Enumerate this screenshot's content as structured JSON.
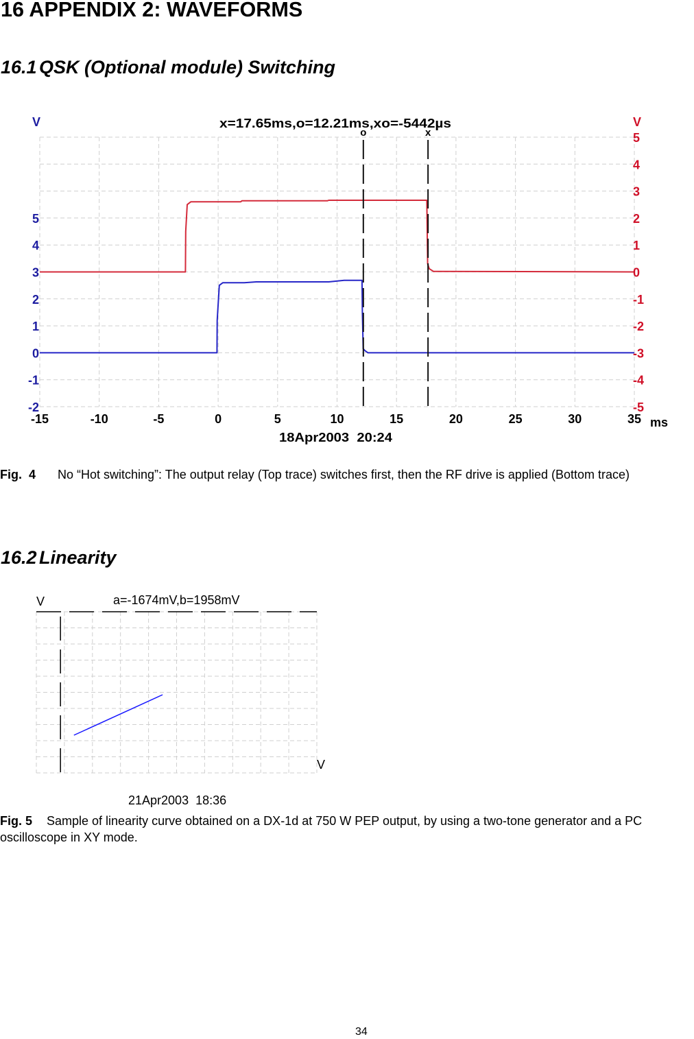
{
  "page": {
    "heading": "16 APPENDIX 2: WAVEFORMS",
    "page_number": "34"
  },
  "sections": [
    {
      "number": "16.1",
      "title": "QSK (Optional module) Switching",
      "figure": {
        "label": "Fig.  4",
        "caption": "No “Hot switching”: The output relay (Top trace) switches first, then the RF drive is applied (Bottom trace)"
      }
    },
    {
      "number": "16.2",
      "title": "Linearity",
      "figure": {
        "label": "Fig. 5",
        "caption": "Sample of linearity curve obtained on a DX-1d at 750 W PEP output, by using a two-tone generator and a PC oscilloscope in XY mode."
      }
    }
  ],
  "chart_data": [
    {
      "type": "line",
      "title": "x=17.65ms,o=12.21ms,xo=-5442µs",
      "xlabel": "ms",
      "timestamp": "18Apr2003  20:24",
      "xlim": [
        -15,
        35
      ],
      "x_ticks": [
        -15,
        -10,
        -5,
        0,
        5,
        10,
        15,
        20,
        25,
        30,
        35
      ],
      "y_left": {
        "label": "V",
        "lim": [
          -2,
          8
        ],
        "ticks": [
          -2,
          -1,
          0,
          1,
          2,
          3,
          4,
          5
        ],
        "color": "#1c1ca0"
      },
      "y_right": {
        "label": "V",
        "lim": [
          -5,
          5
        ],
        "ticks": [
          -5,
          -4,
          -3,
          -2,
          -1,
          0,
          1,
          2,
          3,
          4,
          5
        ],
        "color": "#d01028"
      },
      "grid": true,
      "legend": "none",
      "cursors": [
        {
          "label": "o",
          "x": 12.21
        },
        {
          "label": "x",
          "x": 17.65
        }
      ],
      "series": [
        {
          "name": "Top trace (output relay)",
          "axis": "right",
          "color": "#d42a3a",
          "x": [
            -15,
            -2.75,
            -2.73,
            -2.6,
            -2.3,
            1.9,
            2.0,
            9.2,
            9.3,
            17.55,
            17.57,
            17.62,
            17.75,
            18.1,
            35
          ],
          "y": [
            0,
            0,
            1.5,
            2.5,
            2.6,
            2.6,
            2.64,
            2.64,
            2.66,
            2.66,
            1.8,
            0.3,
            0.12,
            0.02,
            0
          ]
        },
        {
          "name": "Bottom trace (RF drive)",
          "axis": "left",
          "color": "#2626c8",
          "x": [
            -15,
            -0.1,
            -0.08,
            0.1,
            0.4,
            2.2,
            3.2,
            9.3,
            10.6,
            12.1,
            12.13,
            12.2,
            12.35,
            12.6,
            35
          ],
          "y": [
            0,
            0,
            1.2,
            2.5,
            2.6,
            2.6,
            2.63,
            2.63,
            2.69,
            2.69,
            1.5,
            0.15,
            0.08,
            0,
            0
          ]
        }
      ]
    },
    {
      "type": "line",
      "mode": "XY",
      "annotation": "a=-1674mV,b=1958mV",
      "xlabel": "V",
      "ylabel": "V",
      "timestamp": "21Apr2003  18:36",
      "units": "grid divisions",
      "xlim": [
        0,
        10
      ],
      "ylim": [
        0,
        10
      ],
      "grid": true,
      "cursors": [
        {
          "orientation": "horizontal",
          "pos": 10
        },
        {
          "orientation": "vertical",
          "pos": 0.86
        }
      ],
      "series": [
        {
          "name": "XY linearity trace",
          "color": "#1a1aff",
          "x": [
            1.34,
            4.5
          ],
          "y": [
            2.34,
            4.85
          ]
        }
      ]
    }
  ]
}
